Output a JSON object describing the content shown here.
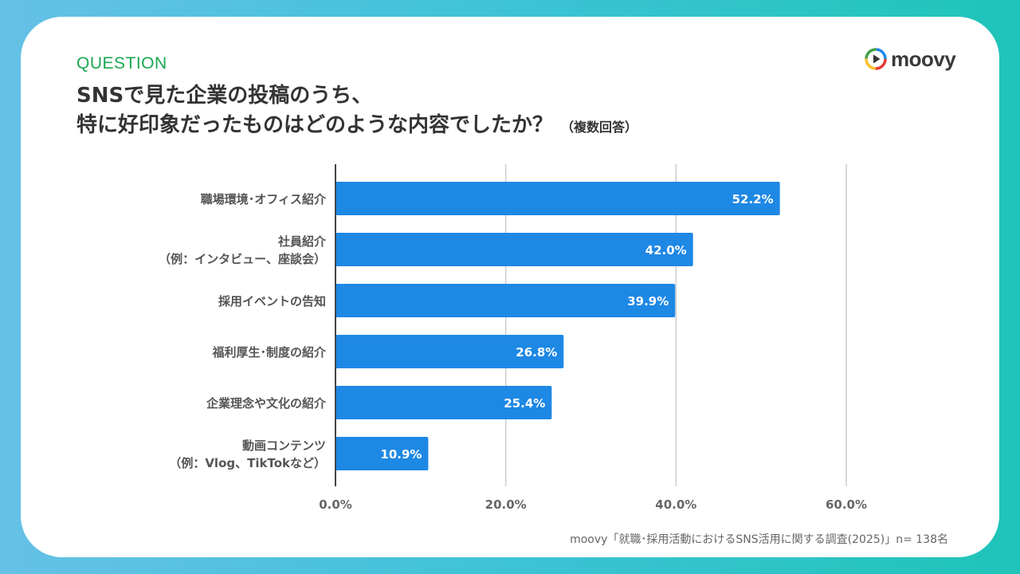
{
  "header": {
    "question_label": "QUESTION",
    "title_line1": "SNSで見た企業の投稿のうち、",
    "title_line2": "特に好印象だったものはどのような内容でしたか？",
    "title_note": "（複数回答）"
  },
  "logo": {
    "text": "moovy",
    "icon": "play-circle-icon"
  },
  "source": "moovy「就職･採用活動におけるSNS活用に関する調査(2025)」n= 138名",
  "colors": {
    "bar": "#1e88e5",
    "grid": "#cccccc",
    "accent": "#1aa851"
  },
  "chart_data": {
    "type": "bar",
    "orientation": "horizontal",
    "categories": [
      [
        "職場環境･オフィス紹介"
      ],
      [
        "社員紹介",
        "（例：インタビュー、座談会）"
      ],
      [
        "採用イベントの告知"
      ],
      [
        "福利厚生･制度の紹介"
      ],
      [
        "企業理念や文化の紹介"
      ],
      [
        "動画コンテンツ",
        "（例：Vlog、TikTokなど）"
      ]
    ],
    "values": [
      52.2,
      42.0,
      39.9,
      26.8,
      25.4,
      10.9
    ],
    "value_labels": [
      "52.2%",
      "42.0%",
      "39.9%",
      "26.8%",
      "25.4%",
      "10.9%"
    ],
    "xlim": [
      0,
      60
    ],
    "ticks": [
      0,
      20,
      40,
      60
    ],
    "tick_labels": [
      "0.0%",
      "20.0%",
      "40.0%",
      "60.0%"
    ],
    "grid": true
  }
}
